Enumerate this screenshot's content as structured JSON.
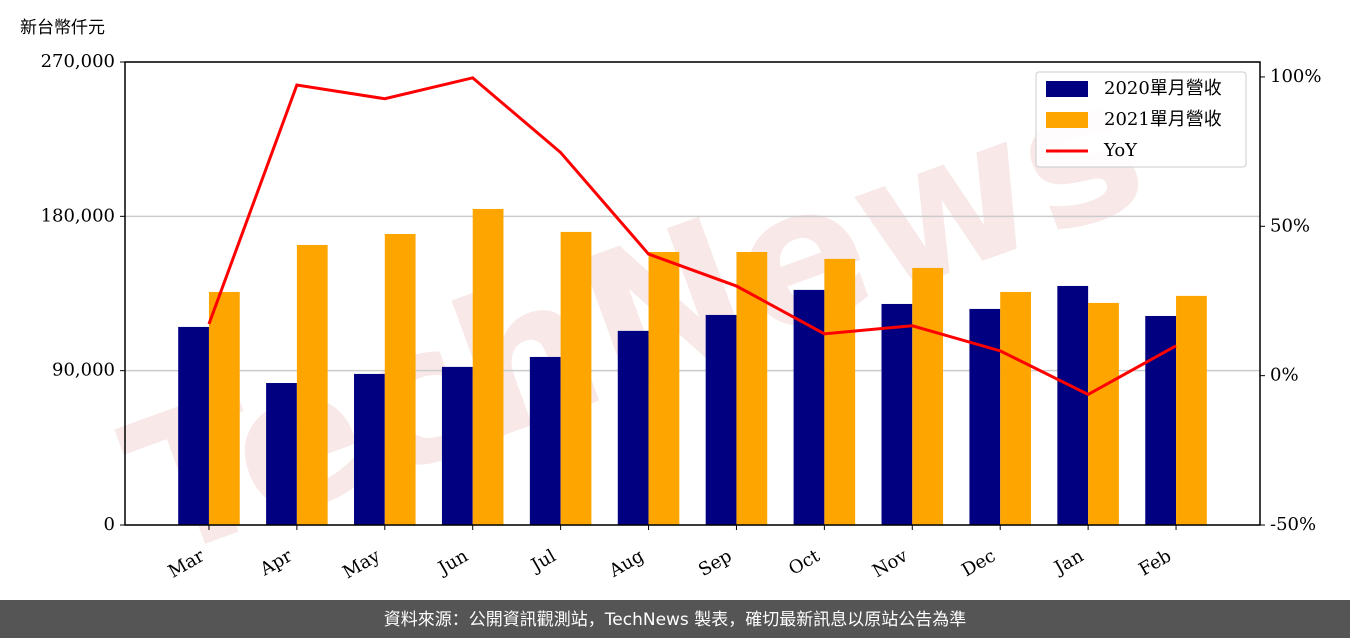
{
  "chart_data": {
    "type": "bar_line",
    "y_label": "新台幣仟元",
    "watermark": "TechNews",
    "footer": "資料來源：公開資訊觀測站，TechNews 製表，確切最新訊息以原站公告為準",
    "categories": [
      "Mar",
      "Apr",
      "May",
      "Jun",
      "Jul",
      "Aug",
      "Sep",
      "Oct",
      "Nov",
      "Dec",
      "Jan",
      "Feb"
    ],
    "series": [
      {
        "name": "2020單月營收",
        "color": "#000080",
        "kind": "bar",
        "values": [
          115500,
          82800,
          88100,
          92200,
          98000,
          113200,
          122500,
          137100,
          128900,
          126000,
          139400,
          121900
        ]
      },
      {
        "name": "2021單月營收",
        "color": "#ffa500",
        "kind": "bar",
        "values": [
          135900,
          163300,
          169700,
          184300,
          170900,
          159200,
          159200,
          155200,
          149900,
          135900,
          129500,
          133600
        ]
      },
      {
        "name": "YoY",
        "color": "#ff0000",
        "kind": "line",
        "axis": "y2",
        "values": [
          17.3,
          97.3,
          92.7,
          99.7,
          74.7,
          40.7,
          30,
          14,
          16.7,
          8.3,
          -6.3,
          10
        ]
      }
    ],
    "ylim": [
      0,
      270000
    ],
    "yticks": [
      0,
      {
        "value": 90000,
        "label": "90,000"
      },
      {
        "value": 180000,
        "label": "180,000"
      },
      {
        "value": 270000,
        "label": "270,000"
      }
    ],
    "y2lim": [
      -50,
      105
    ],
    "y2ticks": [
      {
        "value": -50,
        "label": "-50%"
      },
      {
        "value": 0,
        "label": "0%"
      },
      {
        "value": 50,
        "label": "50%"
      },
      {
        "value": 100,
        "label": "100%"
      }
    ],
    "grid": true,
    "legend": "upper right"
  }
}
